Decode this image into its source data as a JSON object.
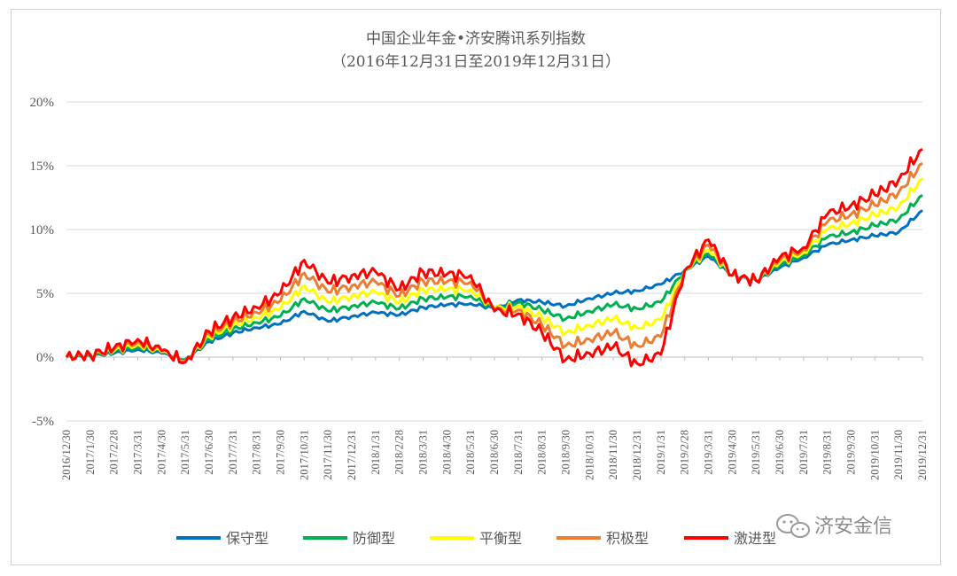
{
  "chart_data": {
    "type": "line",
    "title": "中国企业年金•济安腾讯系列指数",
    "subtitle": "（2016年12月31日至2019年12月31日）",
    "ylim": [
      -5,
      20
    ],
    "y_ticks": [
      "20%",
      "15%",
      "10%",
      "5%",
      "0%",
      "-5%"
    ],
    "y_tick_values": [
      20,
      15,
      10,
      5,
      0,
      -5
    ],
    "grid": true,
    "legend_position": "bottom",
    "x_ticks": [
      "2016/12/30",
      "2017/1/30",
      "2017/2/28",
      "2017/3/31",
      "2017/4/30",
      "2017/5/31",
      "2017/6/30",
      "2017/7/31",
      "2017/8/31",
      "2017/9/30",
      "2017/10/31",
      "2017/11/30",
      "2017/12/31",
      "2018/1/31",
      "2018/2/28",
      "2018/3/31",
      "2018/4/30",
      "2018/5/31",
      "2018/6/30",
      "2018/7/31",
      "2018/8/31",
      "2018/9/30",
      "2018/10/31",
      "2018/11/30",
      "2018/12/31",
      "2019/1/31",
      "2019/2/28",
      "2019/3/31",
      "2019/4/30",
      "2019/5/31",
      "2019/6/30",
      "2019/7/31",
      "2019/8/31",
      "2019/9/30",
      "2019/10/31",
      "2019/11/30",
      "2019/12/31"
    ],
    "series": [
      {
        "name": "保守型",
        "color": "#0070c0",
        "values": [
          0.0,
          0.1,
          0.3,
          0.6,
          0.3,
          -0.2,
          1.2,
          1.9,
          2.3,
          2.6,
          3.6,
          2.8,
          3.2,
          3.5,
          3.3,
          3.9,
          4.1,
          4.2,
          3.8,
          4.5,
          4.3,
          4.0,
          4.6,
          5.0,
          5.2,
          5.7,
          6.8,
          7.9,
          6.4,
          6.0,
          7.0,
          7.8,
          8.8,
          9.2,
          9.5,
          9.8,
          11.5
        ]
      },
      {
        "name": "防御型",
        "color": "#00b050",
        "values": [
          0.0,
          0.1,
          0.4,
          0.8,
          0.4,
          -0.2,
          1.4,
          2.2,
          2.7,
          3.2,
          4.6,
          3.6,
          4.0,
          4.3,
          3.8,
          4.6,
          4.7,
          4.8,
          3.8,
          4.3,
          3.7,
          3.0,
          3.6,
          4.1,
          3.8,
          4.3,
          6.8,
          8.1,
          6.4,
          6.0,
          7.2,
          8.0,
          9.4,
          9.8,
          10.3,
          10.8,
          12.7
        ]
      },
      {
        "name": "平衡型",
        "color": "#ffff00",
        "values": [
          0.0,
          0.2,
          0.5,
          1.0,
          0.4,
          -0.3,
          1.6,
          2.5,
          3.1,
          3.8,
          5.6,
          4.3,
          4.8,
          5.1,
          4.3,
          5.3,
          5.3,
          5.3,
          3.8,
          4.0,
          3.1,
          1.9,
          2.5,
          3.0,
          2.3,
          2.9,
          6.8,
          8.4,
          6.4,
          6.0,
          7.4,
          8.2,
          10.0,
          10.5,
          11.1,
          11.8,
          14.0
        ]
      },
      {
        "name": "积极型",
        "color": "#ed7d31",
        "values": [
          0.0,
          0.2,
          0.6,
          1.2,
          0.5,
          -0.3,
          1.8,
          2.8,
          3.5,
          4.4,
          6.6,
          5.1,
          5.6,
          5.9,
          4.8,
          6.0,
          5.9,
          5.9,
          3.7,
          3.7,
          2.5,
          0.9,
          1.4,
          1.9,
          0.9,
          1.6,
          6.8,
          8.8,
          6.4,
          6.0,
          7.6,
          8.4,
          10.6,
          11.2,
          11.9,
          12.9,
          15.2
        ]
      },
      {
        "name": "激进型",
        "color": "#ff0000",
        "values": [
          0.0,
          0.2,
          0.7,
          1.4,
          0.5,
          -0.4,
          2.0,
          3.1,
          3.9,
          5.0,
          7.6,
          5.8,
          6.4,
          6.7,
          5.3,
          6.7,
          6.5,
          6.4,
          3.6,
          3.4,
          1.9,
          -0.2,
          0.3,
          0.8,
          -0.5,
          0.2,
          6.8,
          9.2,
          6.4,
          6.0,
          7.8,
          8.6,
          11.2,
          11.9,
          12.7,
          13.9,
          16.3
        ]
      }
    ]
  },
  "watermark": {
    "icon": "wechat-bubbles-icon",
    "text": "济安金信"
  }
}
